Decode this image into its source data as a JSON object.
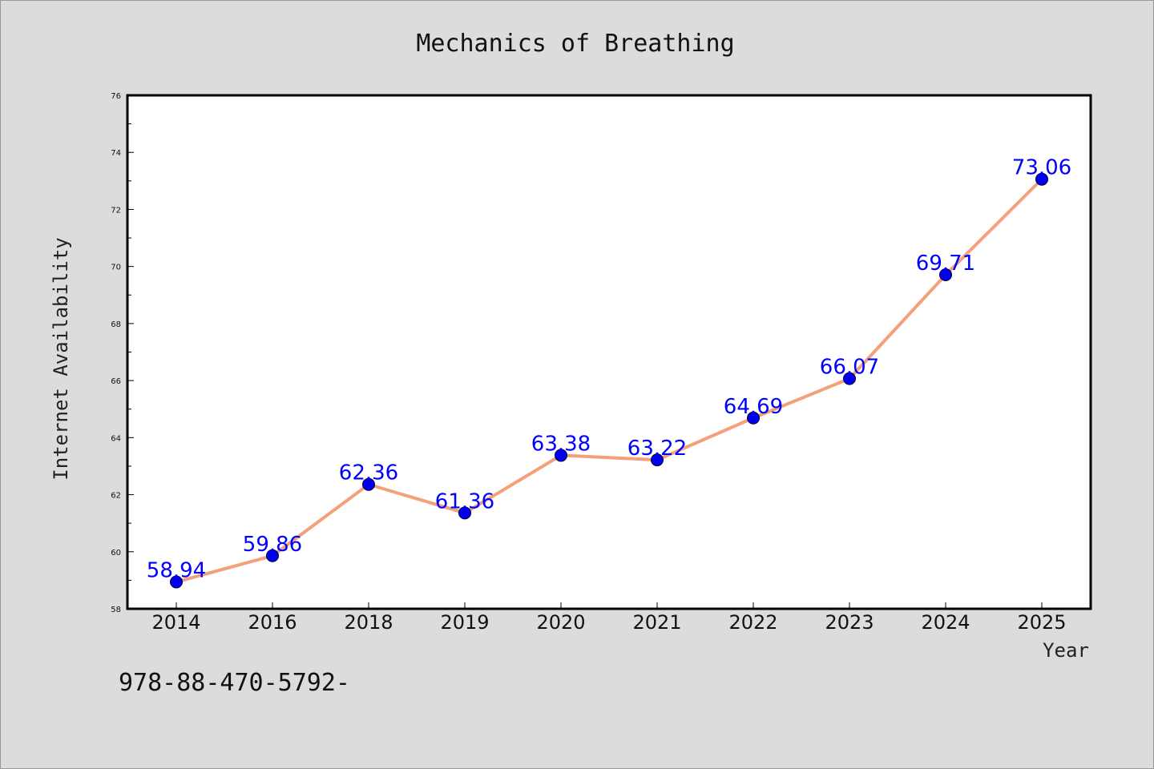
{
  "chart_data": {
    "type": "line",
    "title": "Mechanics of Breathing",
    "xlabel": "Year",
    "ylabel": "Internet Availability",
    "categories": [
      "2014",
      "2016",
      "2018",
      "2019",
      "2020",
      "2021",
      "2022",
      "2023",
      "2024",
      "2025"
    ],
    "values": [
      58.94,
      59.86,
      62.36,
      61.36,
      63.38,
      63.22,
      64.69,
      66.07,
      69.71,
      73.06
    ],
    "data_labels": [
      "58.94",
      "59.86",
      "62.36",
      "61.36",
      "63.38",
      "63.22",
      "64.69",
      "66.07",
      "69.71",
      "73.06"
    ],
    "ylim": [
      58,
      76
    ],
    "yticks": [
      "58",
      "60",
      "62",
      "64",
      "66",
      "68",
      "70",
      "72",
      "74",
      "76"
    ],
    "grid": false,
    "legend": "none",
    "line_color": "#f4a07a",
    "marker_color": "#0000ee",
    "label_color": "#0000ff",
    "background": "#dcdcdc",
    "plot_background": "#ffffff"
  },
  "footer": {
    "text": "978-88-470-5792-"
  }
}
